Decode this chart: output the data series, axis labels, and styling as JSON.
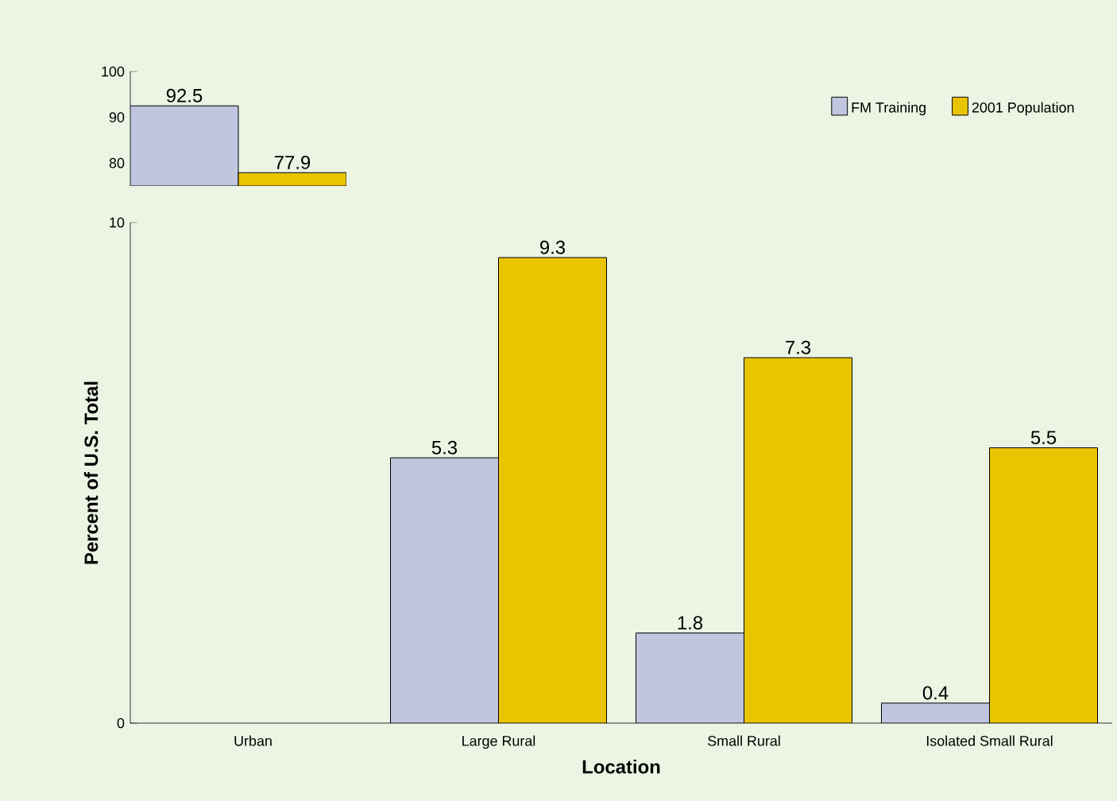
{
  "chart_data": [
    {
      "type": "bar",
      "categories": [
        null
      ],
      "series": [
        {
          "color": "#c0c6e0",
          "values": [
            92.5
          ]
        },
        {
          "color": "#e9c500",
          "values": [
            77.9
          ]
        }
      ],
      "ylim": [
        75,
        100
      ],
      "yticks": [
        80,
        90,
        100
      ],
      "tick_labels": "y",
      "data_labels": true
    },
    {
      "type": "bar",
      "categories": [
        "Urban",
        "Large Rural",
        "Small Rural",
        "Isolated Small Rural"
      ],
      "series": [
        {
          "name": "FM Training",
          "color": "#c0c6e0",
          "values": [
            null,
            5.3,
            1.8,
            0.4
          ]
        },
        {
          "name": "2001 Population",
          "color": "#e9c500",
          "values": [
            null,
            9.3,
            7.3,
            5.5
          ]
        }
      ],
      "ylim": [
        0,
        10
      ],
      "yticks": [
        0,
        10
      ],
      "xlabel": "Location",
      "ylabel": "Percent of U.S. Total",
      "legend": "top right",
      "data_labels": true
    }
  ]
}
